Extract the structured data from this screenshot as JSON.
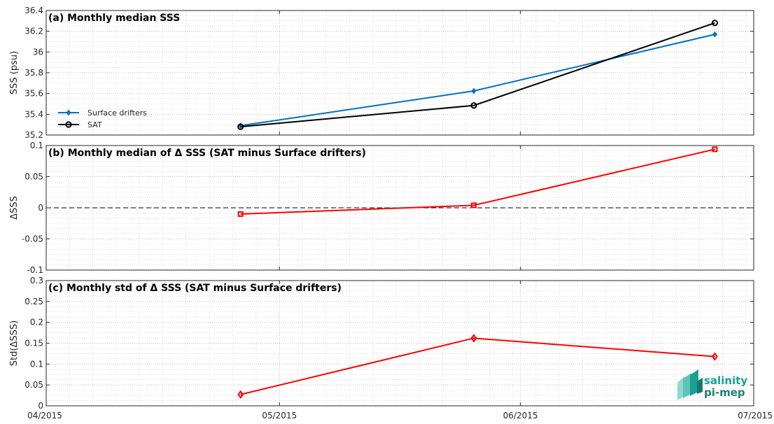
{
  "chart_data": [
    {
      "type": "line",
      "title": "(a) Monthly median SSS",
      "xlabel": "",
      "ylabel": "SSS (psu)",
      "x": [
        "2015-04-26",
        "2015-05-26",
        "2015-06-26"
      ],
      "xticks": [
        "04/2015",
        "05/2015",
        "06/2015",
        "07/2015"
      ],
      "ylim": [
        35.2,
        36.4
      ],
      "yticks": [
        "35.2",
        "35.4",
        "35.6",
        "35.8",
        "36",
        "36.2",
        "36.4"
      ],
      "grid": true,
      "legend": "left",
      "series": [
        {
          "name": "Surface drifters",
          "color": "#0072bd",
          "marker": "diamond",
          "values": [
            35.29,
            35.625,
            36.17
          ]
        },
        {
          "name": "SAT",
          "color": "#000000",
          "marker": "circle",
          "values": [
            35.28,
            35.485,
            36.28
          ]
        }
      ]
    },
    {
      "type": "line",
      "title": "(b) Monthly median of Δ SSS (SAT minus Surface drifters)",
      "xlabel": "",
      "ylabel": "ΔSSS",
      "x": [
        "2015-04-26",
        "2015-05-26",
        "2015-06-26"
      ],
      "ylim": [
        -0.1,
        0.1
      ],
      "yticks": [
        "-0.1",
        "-0.05",
        "0",
        "0.05",
        "0.1"
      ],
      "grid": true,
      "zero_line": "dashed",
      "series": [
        {
          "color": "#ff0000",
          "marker": "square",
          "values": [
            -0.01,
            0.004,
            0.094
          ]
        }
      ]
    },
    {
      "type": "line",
      "title": "(c) Monthly std of Δ SSS (SAT minus Surface drifters)",
      "xlabel": "",
      "ylabel": "Std(ΔSSS)",
      "x": [
        "2015-04-26",
        "2015-05-26",
        "2015-06-26"
      ],
      "ylim": [
        0,
        0.3
      ],
      "yticks": [
        "0",
        "0.05",
        "0.1",
        "0.15",
        "0.2",
        "0.25",
        "0.3"
      ],
      "grid": true,
      "series": [
        {
          "color": "#ff0000",
          "marker": "diamond",
          "values": [
            0.027,
            0.162,
            0.118
          ]
        }
      ]
    }
  ],
  "logo": {
    "line1": "salinity",
    "line2": "pi-mep",
    "color": "#1b9f93"
  }
}
